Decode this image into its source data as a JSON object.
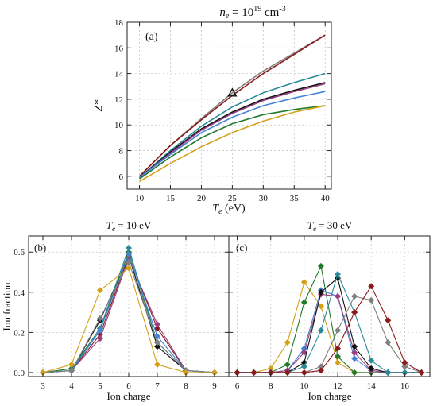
{
  "chart_data": [
    {
      "type": "line",
      "panel_label": "(a)",
      "title": "n_e = 10^19 cm^-3",
      "title_parts": {
        "n": "n",
        "sub_e": "e",
        "eq": " = 10",
        "exp19": "19",
        "unit": " cm",
        "exp_unit": "-3"
      },
      "xlabel": {
        "main": "T",
        "sub": "e",
        "rest": " (eV)"
      },
      "ylabel": "Z*",
      "xlim": [
        8,
        41
      ],
      "ylim": [
        5,
        18
      ],
      "xticks": [
        10,
        15,
        20,
        25,
        30,
        35,
        40
      ],
      "yticks": [
        6,
        8,
        10,
        12,
        14,
        16,
        18
      ],
      "grid": true,
      "x": [
        10,
        15,
        20,
        25,
        30,
        35,
        40
      ],
      "series": [
        {
          "color": "#7f7f7f",
          "values": [
            6.0,
            8.4,
            10.5,
            12.5,
            14.2,
            15.6,
            17.0
          ]
        },
        {
          "color": "#8b1a1a",
          "values": [
            6.0,
            8.4,
            10.4,
            12.3,
            14.0,
            15.5,
            17.0
          ]
        },
        {
          "color": "#2a8a9a",
          "values": [
            5.9,
            8.0,
            9.9,
            11.4,
            12.5,
            13.3,
            14.0
          ]
        },
        {
          "color": "#111111",
          "values": [
            5.9,
            7.9,
            9.7,
            11.0,
            12.0,
            12.7,
            13.3
          ]
        },
        {
          "color": "#9a3f7f",
          "values": [
            5.9,
            7.8,
            9.6,
            10.9,
            11.9,
            12.6,
            13.2
          ]
        },
        {
          "color": "#4682d8",
          "values": [
            5.9,
            7.7,
            9.4,
            10.6,
            11.5,
            12.1,
            12.6
          ]
        },
        {
          "color": "#1f7a2a",
          "values": [
            5.8,
            7.5,
            9.0,
            10.1,
            10.8,
            11.2,
            11.5
          ]
        },
        {
          "color": "#d4a017",
          "values": [
            5.6,
            7.0,
            8.3,
            9.4,
            10.3,
            11.0,
            11.5
          ]
        }
      ],
      "marker": {
        "x": 25,
        "y": 12.5,
        "symbol": "triangle"
      }
    },
    {
      "type": "line",
      "panel_label": "(b)",
      "title_parts": {
        "main": "T",
        "sub": "e",
        "rest": " = 10 eV"
      },
      "xlabel": "Ion charge",
      "ylabel": "Ion fraction",
      "xlim": [
        2.5,
        9.5
      ],
      "ylim": [
        -0.02,
        0.68
      ],
      "xticks": [
        3,
        4,
        5,
        6,
        7,
        8,
        9
      ],
      "yticks": [
        0.0,
        0.2,
        0.4,
        0.6
      ],
      "ytick_labels": [
        "0.0",
        "0.2",
        "0.4",
        "0.6"
      ],
      "grid": true,
      "x": [
        3,
        4,
        5,
        6,
        7,
        8,
        9
      ],
      "series": [
        {
          "color": "#111111",
          "values": [
            0.0,
            0.01,
            0.26,
            0.58,
            0.13,
            0.01,
            0.0
          ]
        },
        {
          "color": "#8b1a1a",
          "values": [
            0.0,
            0.01,
            0.19,
            0.58,
            0.22,
            0.01,
            0.0
          ]
        },
        {
          "color": "#9a3f7f",
          "values": [
            0.0,
            0.01,
            0.17,
            0.57,
            0.24,
            0.01,
            0.0
          ]
        },
        {
          "color": "#1f7a2a",
          "values": [
            0.0,
            0.02,
            0.22,
            0.6,
            0.15,
            0.01,
            0.0
          ]
        },
        {
          "color": "#2a8a9a",
          "values": [
            0.0,
            0.01,
            0.22,
            0.62,
            0.15,
            0.01,
            0.0
          ]
        },
        {
          "color": "#4682d8",
          "values": [
            0.0,
            0.01,
            0.21,
            0.59,
            0.18,
            0.01,
            0.0
          ]
        },
        {
          "color": "#7f7f7f",
          "values": [
            0.0,
            0.01,
            0.27,
            0.55,
            0.15,
            0.01,
            0.0
          ]
        },
        {
          "color": "#d4a017",
          "values": [
            0.0,
            0.04,
            0.41,
            0.52,
            0.04,
            0.0,
            0.0
          ]
        }
      ]
    },
    {
      "type": "line",
      "panel_label": "(c)",
      "title_parts": {
        "main": "T",
        "sub": "e",
        "rest": " = 30 eV"
      },
      "xlabel": "Ion charge",
      "ylabel": "",
      "xlim": [
        5.5,
        17.5
      ],
      "ylim": [
        -0.02,
        0.68
      ],
      "xticks": [
        6,
        8,
        10,
        12,
        14,
        16
      ],
      "yticks": [
        0.0,
        0.2,
        0.4,
        0.6
      ],
      "grid": true,
      "x": [
        6,
        7,
        8,
        9,
        10,
        11,
        12,
        13,
        14,
        15,
        16,
        17
      ],
      "series": [
        {
          "color": "#d4a017",
          "values": [
            0.0,
            0.0,
            0.02,
            0.15,
            0.45,
            0.33,
            0.05,
            0.0,
            0.0,
            0.0,
            0.0,
            0.0
          ]
        },
        {
          "color": "#1f7a2a",
          "values": [
            0.0,
            0.0,
            0.0,
            0.04,
            0.35,
            0.53,
            0.08,
            0.0,
            0.0,
            0.0,
            0.0,
            0.0
          ]
        },
        {
          "color": "#4682d8",
          "values": [
            0.0,
            0.0,
            0.0,
            0.01,
            0.12,
            0.41,
            0.38,
            0.07,
            0.01,
            0.0,
            0.0,
            0.0
          ]
        },
        {
          "color": "#9a3f7f",
          "values": [
            0.0,
            0.0,
            0.0,
            0.01,
            0.1,
            0.39,
            0.38,
            0.1,
            0.01,
            0.0,
            0.0,
            0.0
          ]
        },
        {
          "color": "#111111",
          "values": [
            0.0,
            0.0,
            0.0,
            0.0,
            0.05,
            0.4,
            0.47,
            0.13,
            0.02,
            0.0,
            0.0,
            0.0
          ]
        },
        {
          "color": "#2a8a9a",
          "values": [
            0.0,
            0.0,
            0.0,
            0.0,
            0.03,
            0.21,
            0.49,
            0.3,
            0.06,
            0.0,
            0.0,
            0.0
          ]
        },
        {
          "color": "#7f7f7f",
          "values": [
            0.0,
            0.0,
            0.0,
            0.0,
            0.0,
            0.03,
            0.21,
            0.38,
            0.36,
            0.15,
            0.03,
            0.0
          ]
        },
        {
          "color": "#8b1a1a",
          "values": [
            0.0,
            0.0,
            0.0,
            0.0,
            0.0,
            0.01,
            0.12,
            0.3,
            0.43,
            0.26,
            0.05,
            0.0
          ]
        }
      ]
    }
  ]
}
